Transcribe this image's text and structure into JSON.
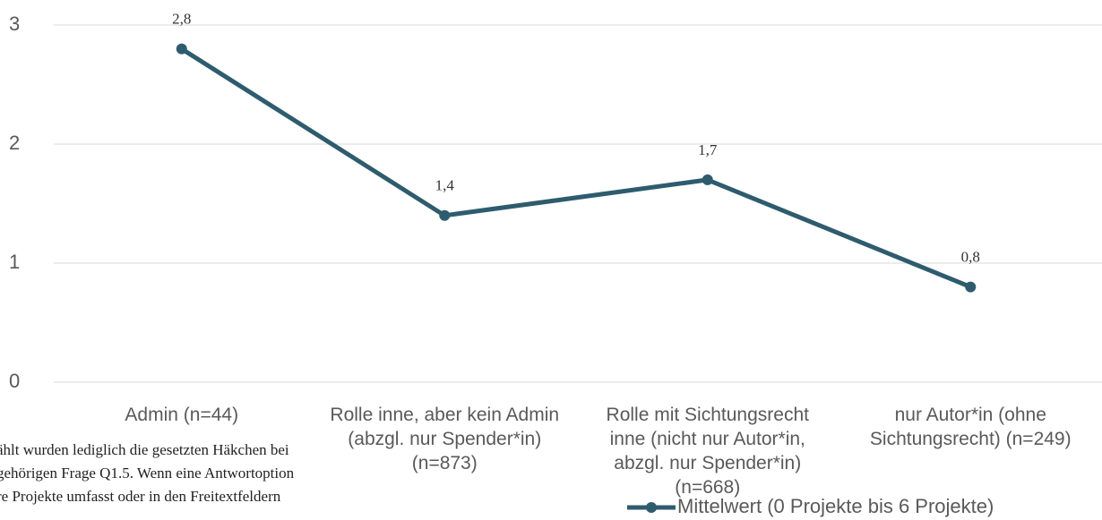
{
  "chart_data": {
    "type": "line",
    "categories": [
      "Admin (n=44)",
      "Rolle inne, aber kein Admin (abzgl. nur Spender*in) (n=873)",
      "Rolle mit Sichtungsrecht inne (nicht nur Autor*in, abzgl. nur Spender*in) (n=668)",
      "nur Autor*in (ohne Sichtungsrecht) (n=249)"
    ],
    "series": [
      {
        "name": "Mittelwert (0 Projekte bis 6 Projekte)",
        "color": "#2e5c6e",
        "values": [
          2.8,
          1.4,
          1.7,
          0.8
        ],
        "value_labels": [
          "2,8",
          "1,4",
          "1,7",
          "0,8"
        ]
      }
    ],
    "ylim": [
      0,
      3
    ],
    "yticks": [
      0,
      1,
      2,
      3
    ],
    "grid": true,
    "legend": "bottom"
  },
  "footnote": [
    "ählt wurden lediglich die gesetzten Häkchen bei",
    "gehörigen Frage Q1.5. Wenn eine Antwortoption",
    "re Projekte umfasst oder in den Freitextfeldern"
  ]
}
